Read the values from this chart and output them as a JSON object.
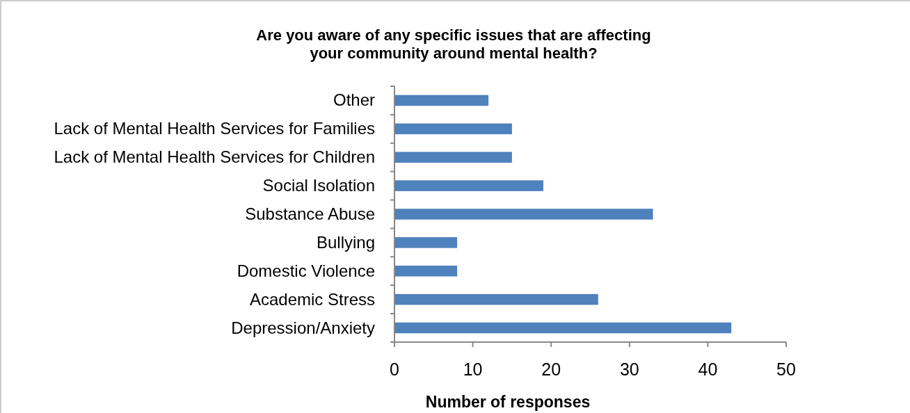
{
  "chart_data": {
    "type": "bar",
    "orientation": "horizontal",
    "title": "Are you aware of any specific issues that are affecting\nyour community around mental health?",
    "xlabel": "Number of responses",
    "categories": [
      "Other",
      "Lack of Mental Health Services for Families",
      "Lack of Mental Health Services for Children",
      "Social Isolation",
      "Substance Abuse",
      "Bullying",
      "Domestic Violence",
      "Academic Stress",
      "Depression/Anxiety"
    ],
    "values": [
      12,
      15,
      15,
      19,
      33,
      8,
      8,
      26,
      43
    ],
    "color": "#4f81bd",
    "xlim": [
      0,
      50
    ],
    "xticks": [
      0,
      10,
      20,
      30,
      40,
      50
    ],
    "grid": false
  }
}
